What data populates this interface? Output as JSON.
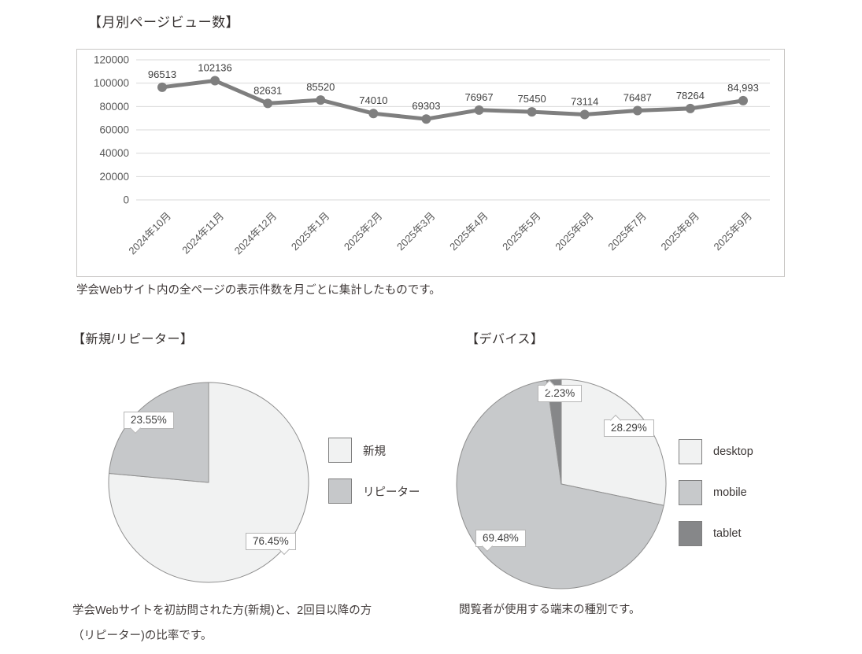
{
  "sections": {
    "monthly": {
      "title": "【月別ページビュー数】",
      "caption": "学会Webサイト内の全ページの表示件数を月ごとに集計したものです。"
    },
    "visitors": {
      "title": "【新規/リピーター】",
      "caption_lines": {
        "0": "学会Webサイトを初訪問された方(新規)と、2回目以降の方",
        "1": "（リピーター)の比率です。"
      }
    },
    "devices": {
      "title": "【デバイス】",
      "caption": "閲覧者が使用する端末の種別です。"
    }
  },
  "chart_data": [
    {
      "type": "line",
      "title": "月別ページビュー数",
      "x": [
        "2024年10月",
        "2024年11月",
        "2024年12月",
        "2025年1月",
        "2025年2月",
        "2025年3月",
        "2025年4月",
        "2025年5月",
        "2025年6月",
        "2025年7月",
        "2025年8月",
        "2025年9月"
      ],
      "series": [
        {
          "name": "月別ページビュー数",
          "values": [
            96513,
            102136,
            82631,
            85520,
            74010,
            69303,
            76967,
            75450,
            73114,
            76487,
            78264,
            84993
          ]
        }
      ],
      "data_labels": [
        "96513",
        "102136",
        "82631",
        "85520",
        "74010",
        "69303",
        "76967",
        "75450",
        "73114",
        "76487",
        "78264",
        "84,993"
      ],
      "ylim": [
        0,
        120000
      ],
      "yticks": [
        0,
        20000,
        40000,
        60000,
        80000,
        100000,
        120000
      ],
      "grid": true,
      "legend_position": "none"
    },
    {
      "type": "pie",
      "title": "新規/リピーター",
      "legend_position": "right",
      "slices": [
        {
          "name": "新規",
          "value": 76.45,
          "pct_label": "76.45%",
          "color": "#f1f2f2"
        },
        {
          "name": "リピーター",
          "value": 23.55,
          "pct_label": "23.55%",
          "color": "#c6c8ca"
        }
      ]
    },
    {
      "type": "pie",
      "title": "デバイス",
      "legend_position": "right",
      "slices": [
        {
          "name": "desktop",
          "value": 28.29,
          "pct_label": "28.29%",
          "color": "#f1f2f2"
        },
        {
          "name": "mobile",
          "value": 69.48,
          "pct_label": "69.48%",
          "color": "#c7c9cb"
        },
        {
          "name": "tablet",
          "value": 2.23,
          "pct_label": "2.23%",
          "color": "#868789"
        }
      ]
    }
  ],
  "colors": {
    "line_series": "#7f7f7f",
    "gridline": "#d9d9d9",
    "axis_tick_text": "#595959",
    "data_label_text": "#404040",
    "pie_slice_border": "#8f8f8f",
    "frame_border": "#c9c7c5"
  }
}
